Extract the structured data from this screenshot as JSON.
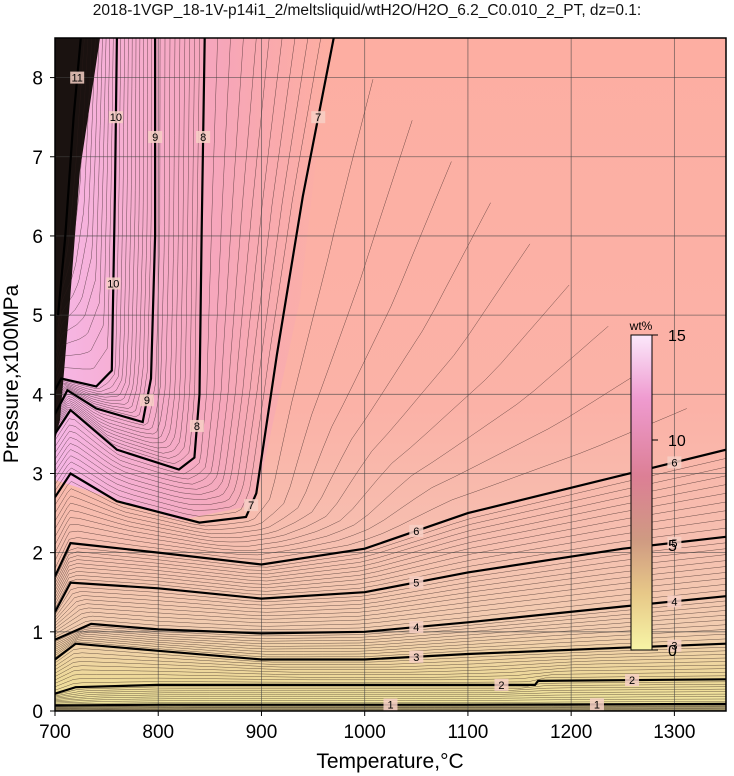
{
  "chart_data": {
    "type": "heatmap",
    "title": "2018-1VGP_18-1V-p14i1_2/meltsliquid/wtH2O/H2O_6.2_C0.010_2_PT, dz=0.1:",
    "xlabel": "Temperature,°C",
    "ylabel": "Pressure,x100MPa",
    "xlim": [
      700,
      1350
    ],
    "ylim": [
      0,
      8.5
    ],
    "x_ticks": [
      "700",
      "800",
      "900",
      "1000",
      "1100",
      "1200",
      "1300"
    ],
    "y_ticks": [
      "0",
      "1",
      "2",
      "3",
      "4",
      "5",
      "6",
      "7",
      "8"
    ],
    "grid": true,
    "colorbar": {
      "label": "wt%",
      "range": [
        0,
        15
      ],
      "ticks": [
        "0",
        "5",
        "10",
        "15"
      ],
      "colors": [
        "#f7f5a6",
        "#e7c888",
        "#cf9a82",
        "#dc7f95",
        "#ef9bd0",
        "#fbe8fb"
      ]
    },
    "contour_interval": 0.1,
    "labeled_contours": [
      {
        "level": 1,
        "points": [
          [
            700,
            0.07
          ],
          [
            800,
            0.08
          ],
          [
            950,
            0.08
          ],
          [
            1100,
            0.08
          ],
          [
            1350,
            0.09
          ]
        ]
      },
      {
        "level": 2,
        "points": [
          [
            700,
            0.22
          ],
          [
            720,
            0.3
          ],
          [
            800,
            0.33
          ],
          [
            950,
            0.33
          ],
          [
            1100,
            0.33
          ],
          [
            1165,
            0.33
          ],
          [
            1168,
            0.38
          ],
          [
            1350,
            0.4
          ]
        ]
      },
      {
        "level": 3,
        "points": [
          [
            700,
            0.65
          ],
          [
            720,
            0.85
          ],
          [
            800,
            0.76
          ],
          [
            900,
            0.65
          ],
          [
            1000,
            0.65
          ],
          [
            1100,
            0.72
          ],
          [
            1250,
            0.8
          ],
          [
            1350,
            0.85
          ]
        ]
      },
      {
        "level": 4,
        "points": [
          [
            700,
            0.9
          ],
          [
            735,
            1.1
          ],
          [
            800,
            1.03
          ],
          [
            900,
            0.98
          ],
          [
            1000,
            1.0
          ],
          [
            1100,
            1.12
          ],
          [
            1250,
            1.32
          ],
          [
            1350,
            1.45
          ]
        ]
      },
      {
        "level": 5,
        "points": [
          [
            700,
            1.25
          ],
          [
            715,
            1.62
          ],
          [
            800,
            1.55
          ],
          [
            900,
            1.42
          ],
          [
            1000,
            1.5
          ],
          [
            1100,
            1.75
          ],
          [
            1250,
            2.05
          ],
          [
            1350,
            2.2
          ]
        ]
      },
      {
        "level": 6,
        "points": [
          [
            700,
            1.7
          ],
          [
            715,
            2.12
          ],
          [
            800,
            2.0
          ],
          [
            900,
            1.85
          ],
          [
            1000,
            2.05
          ],
          [
            1100,
            2.5
          ],
          [
            1250,
            2.98
          ],
          [
            1350,
            3.3
          ]
        ]
      },
      {
        "level": 7,
        "points": [
          [
            700,
            2.7
          ],
          [
            715,
            3.0
          ],
          [
            760,
            2.65
          ],
          [
            840,
            2.38
          ],
          [
            885,
            2.45
          ],
          [
            895,
            2.75
          ],
          [
            915,
            4.5
          ],
          [
            940,
            6.5
          ],
          [
            970,
            8.5
          ]
        ]
      },
      {
        "level": 8,
        "points": [
          [
            700,
            3.5
          ],
          [
            715,
            3.8
          ],
          [
            760,
            3.3
          ],
          [
            820,
            3.05
          ],
          [
            835,
            3.2
          ],
          [
            840,
            4.0
          ],
          [
            842,
            6.0
          ],
          [
            845,
            8.5
          ]
        ]
      },
      {
        "level": 9,
        "points": [
          [
            700,
            3.75
          ],
          [
            712,
            4.05
          ],
          [
            740,
            3.82
          ],
          [
            785,
            3.65
          ],
          [
            793,
            4.2
          ],
          [
            797,
            6.0
          ],
          [
            797,
            8.5
          ]
        ]
      },
      {
        "level": 10,
        "points": [
          [
            700,
            4.05
          ],
          [
            706,
            4.2
          ],
          [
            740,
            4.1
          ],
          [
            755,
            4.3
          ],
          [
            758,
            6.5
          ],
          [
            760,
            8.5
          ]
        ]
      },
      {
        "level": 11,
        "points": [
          [
            703,
            5.0
          ],
          [
            710,
            6.0
          ],
          [
            718,
            7.5
          ],
          [
            725,
            8.5
          ]
        ]
      }
    ]
  }
}
